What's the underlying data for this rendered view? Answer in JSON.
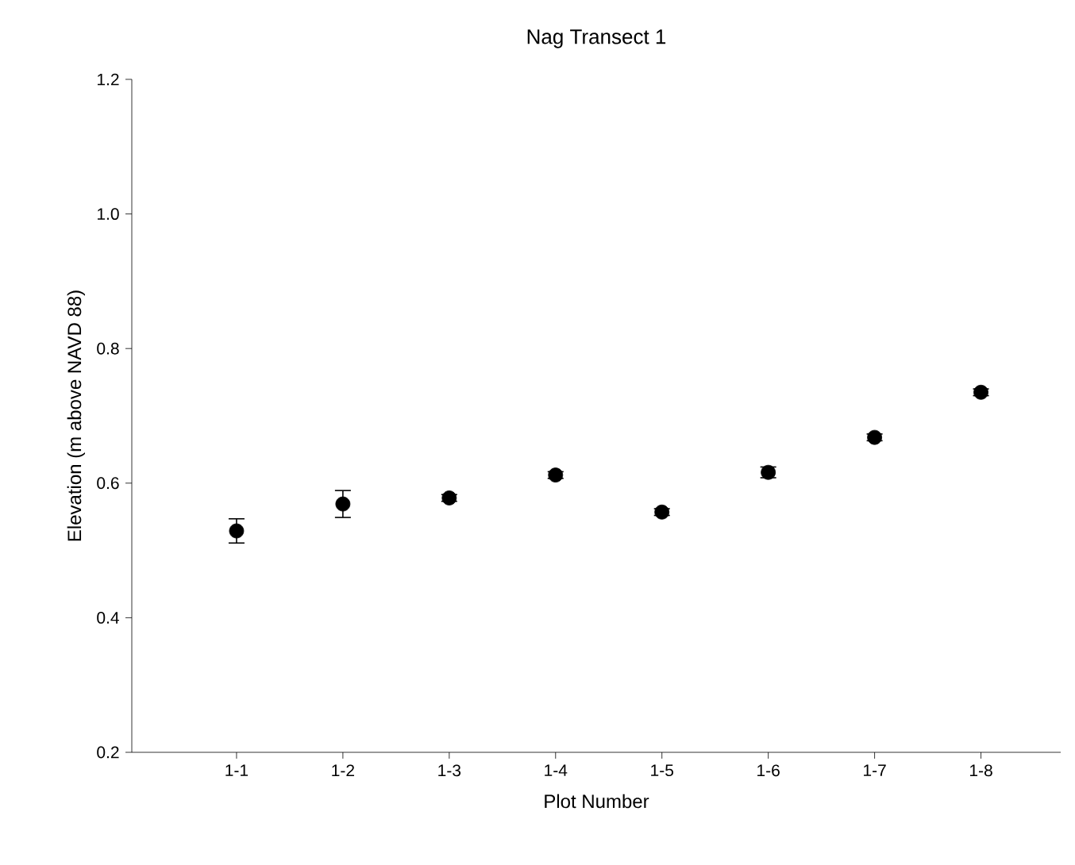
{
  "chart_data": {
    "type": "scatter",
    "title": "Nag Transect 1",
    "xlabel": "Plot Number",
    "ylabel": "Elevation (m above NAVD 88)",
    "categories": [
      "1-1",
      "1-2",
      "1-3",
      "1-4",
      "1-5",
      "1-6",
      "1-7",
      "1-8"
    ],
    "series": [
      {
        "color": "#000000",
        "values": [
          0.529,
          0.569,
          0.578,
          0.612,
          0.557,
          0.616,
          0.668,
          0.735
        ],
        "errors": [
          0.018,
          0.02,
          0.005,
          0.005,
          0.005,
          0.008,
          0.005,
          0.005
        ]
      }
    ],
    "marker": "circle",
    "grid": false,
    "ylim": [
      0.2,
      1.2
    ],
    "yticks": [
      {
        "value": 0.2,
        "label": "0.2"
      },
      {
        "value": 0.4,
        "label": "0.4"
      },
      {
        "value": 0.6,
        "label": "0.6"
      },
      {
        "value": 0.8,
        "label": "0.8"
      },
      {
        "value": 1.0,
        "label": "1.0"
      },
      {
        "value": 1.2,
        "label": "1.2"
      }
    ]
  }
}
